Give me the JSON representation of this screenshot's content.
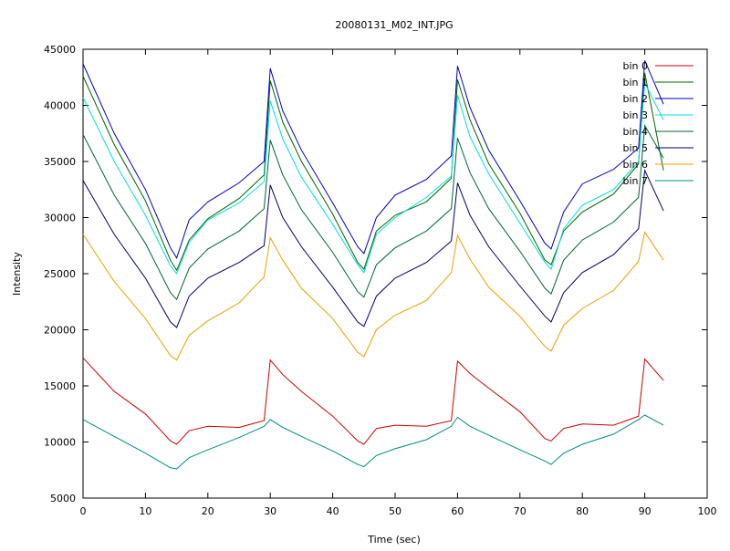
{
  "chart_data": {
    "type": "line",
    "title": "20080131_M02_INT.JPG",
    "xlabel": "Time (sec)",
    "ylabel": "Intensity",
    "xlim": [
      0,
      100
    ],
    "ylim": [
      5000,
      45000
    ],
    "xticks": [
      0,
      10,
      20,
      30,
      40,
      50,
      60,
      70,
      80,
      90,
      100
    ],
    "yticks": [
      5000,
      10000,
      15000,
      20000,
      25000,
      30000,
      35000,
      40000,
      45000
    ],
    "grid": false,
    "legend_position": "top-right",
    "series": [
      {
        "name": "bin 0",
        "color": "#cc0000",
        "x": [
          0,
          5,
          10,
          14,
          15,
          17,
          20,
          25,
          29,
          30,
          32,
          35,
          40,
          44,
          45,
          47,
          50,
          55,
          59,
          60,
          62,
          65,
          70,
          74,
          75,
          77,
          80,
          85,
          89,
          90,
          93
        ],
        "y": [
          17500,
          14500,
          12500,
          10100,
          9800,
          11000,
          11400,
          11300,
          11900,
          17300,
          16000,
          14500,
          12300,
          10100,
          9800,
          11200,
          11500,
          11400,
          11900,
          17200,
          16100,
          14800,
          12700,
          10300,
          10100,
          11200,
          11600,
          11500,
          12300,
          17400,
          15500
        ]
      },
      {
        "name": "bin 1",
        "color": "#006600",
        "x": [
          0,
          5,
          10,
          14,
          15,
          17,
          20,
          25,
          29,
          30,
          32,
          35,
          40,
          44,
          45,
          47,
          50,
          55,
          59,
          60,
          62,
          65,
          70,
          74,
          75,
          77,
          80,
          85,
          89,
          90,
          93
        ],
        "y": [
          42600,
          36500,
          31500,
          26200,
          25300,
          28000,
          29900,
          31700,
          33800,
          42200,
          38500,
          35000,
          30300,
          26000,
          25400,
          28800,
          30200,
          31400,
          33500,
          42300,
          38700,
          34800,
          30400,
          26200,
          25800,
          28800,
          30500,
          32100,
          34800,
          42900,
          34200
        ]
      },
      {
        "name": "bin 2",
        "color": "#0000bb",
        "x": [
          0,
          5,
          10,
          14,
          15,
          17,
          20,
          25,
          29,
          30,
          32,
          35,
          40,
          44,
          45,
          47,
          50,
          55,
          59,
          60,
          62,
          65,
          70,
          74,
          75,
          77,
          80,
          85,
          89,
          90,
          93
        ],
        "y": [
          43700,
          37500,
          32500,
          27300,
          26400,
          29800,
          31400,
          33100,
          35000,
          43300,
          39500,
          36000,
          31300,
          27400,
          26800,
          30000,
          32000,
          33400,
          35500,
          43500,
          39800,
          36000,
          31500,
          27700,
          27200,
          30500,
          33000,
          34300,
          36200,
          44000,
          40100
        ]
      },
      {
        "name": "bin 3",
        "color": "#00dddd",
        "x": [
          0,
          5,
          10,
          14,
          15,
          17,
          20,
          25,
          29,
          30,
          32,
          35,
          40,
          44,
          45,
          47,
          50,
          55,
          59,
          60,
          62,
          65,
          70,
          74,
          75,
          77,
          80,
          85,
          89,
          90,
          93
        ],
        "y": [
          40700,
          35000,
          30200,
          25700,
          25000,
          27800,
          29800,
          31300,
          33200,
          40400,
          37000,
          33600,
          29400,
          25800,
          25100,
          28500,
          30000,
          31800,
          33700,
          40900,
          37200,
          33900,
          29500,
          26000,
          25400,
          29000,
          31100,
          32500,
          35000,
          42000,
          38700
        ]
      },
      {
        "name": "bin 4",
        "color": "#006633",
        "x": [
          0,
          5,
          10,
          14,
          15,
          17,
          20,
          25,
          29,
          30,
          32,
          35,
          40,
          44,
          45,
          47,
          50,
          55,
          59,
          60,
          62,
          65,
          70,
          74,
          75,
          77,
          80,
          85,
          89,
          90,
          93
        ],
        "y": [
          37400,
          32000,
          27700,
          23300,
          22700,
          25500,
          27200,
          28800,
          30800,
          36900,
          33800,
          30700,
          26900,
          23400,
          22900,
          25800,
          27300,
          28800,
          30800,
          37100,
          34000,
          30800,
          27000,
          23700,
          23200,
          26200,
          28000,
          29600,
          31800,
          38200,
          35300
        ]
      },
      {
        "name": "bin 5",
        "color": "#000066",
        "x": [
          0,
          5,
          10,
          14,
          15,
          17,
          20,
          25,
          29,
          30,
          32,
          35,
          40,
          44,
          45,
          47,
          50,
          55,
          59,
          60,
          62,
          65,
          70,
          74,
          75,
          77,
          80,
          85,
          89,
          90,
          93
        ],
        "y": [
          33300,
          28500,
          24600,
          20700,
          20200,
          23000,
          24600,
          26000,
          27500,
          32900,
          30000,
          27400,
          23800,
          20700,
          20300,
          23000,
          24600,
          26000,
          27900,
          33100,
          30200,
          27400,
          23900,
          21200,
          20700,
          23300,
          25100,
          26700,
          29000,
          34200,
          30600
        ]
      },
      {
        "name": "bin 6",
        "color": "#e6a100",
        "x": [
          0,
          5,
          10,
          14,
          15,
          17,
          20,
          25,
          29,
          30,
          32,
          35,
          40,
          44,
          45,
          47,
          50,
          55,
          59,
          60,
          62,
          65,
          70,
          74,
          75,
          77,
          80,
          85,
          89,
          90,
          93
        ],
        "y": [
          28500,
          24300,
          21000,
          17700,
          17300,
          19500,
          20800,
          22400,
          24700,
          28200,
          26200,
          23700,
          21000,
          18000,
          17600,
          20000,
          21300,
          22600,
          25100,
          28400,
          26300,
          23800,
          21200,
          18500,
          18100,
          20400,
          21900,
          23500,
          26100,
          28700,
          26200
        ]
      },
      {
        "name": "bin 7",
        "color": "#008a8a",
        "x": [
          0,
          5,
          10,
          14,
          15,
          17,
          20,
          25,
          29,
          30,
          32,
          35,
          40,
          44,
          45,
          47,
          50,
          55,
          59,
          60,
          62,
          65,
          70,
          74,
          75,
          77,
          80,
          85,
          89,
          90,
          93
        ],
        "y": [
          12000,
          10500,
          9000,
          7700,
          7600,
          8600,
          9300,
          10400,
          11400,
          12000,
          11300,
          10500,
          9200,
          8000,
          7800,
          8800,
          9400,
          10200,
          11400,
          12200,
          11400,
          10600,
          9300,
          8300,
          8000,
          9000,
          9800,
          10700,
          12000,
          12400,
          11500
        ]
      }
    ]
  }
}
